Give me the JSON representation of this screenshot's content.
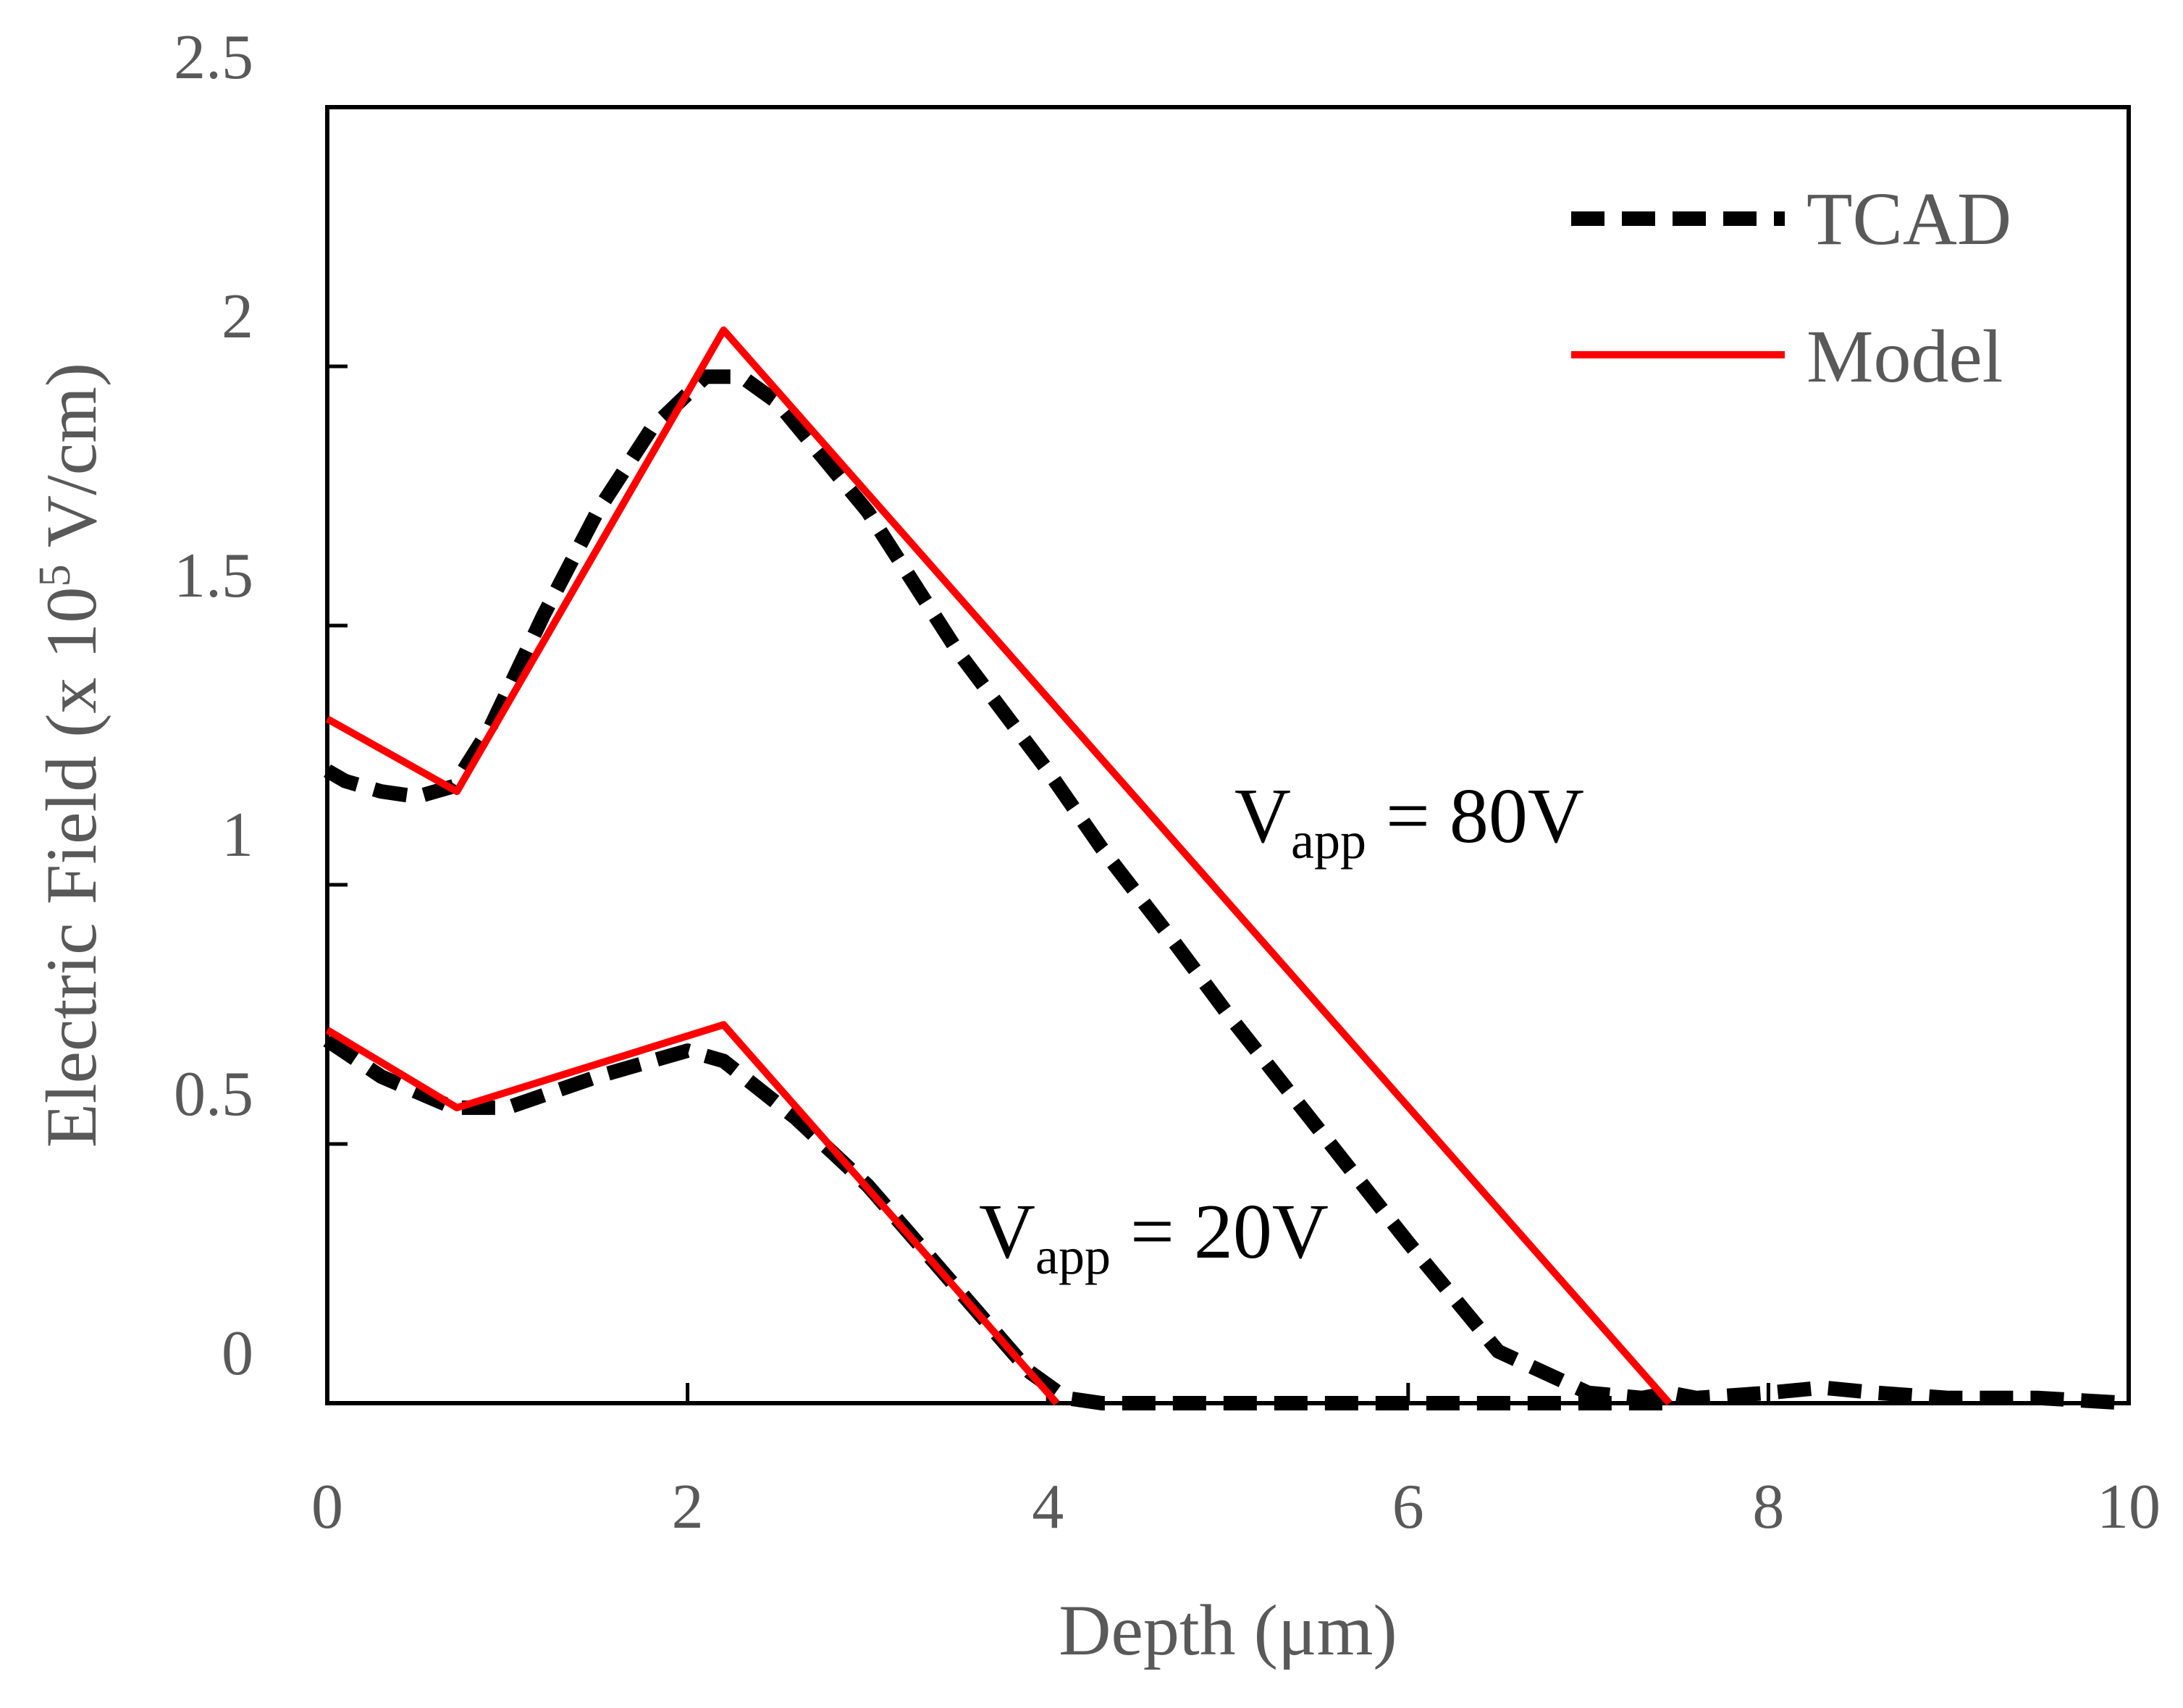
{
  "chart_data": {
    "type": "line",
    "title": "",
    "xlabel": "Depth (μm)",
    "ylabel": "Electric Field (x 10",
    "ylabel_superscript": "5",
    "ylabel_unit": " V/cm)",
    "xlim": [
      0,
      10
    ],
    "ylim": [
      0,
      2.5
    ],
    "x_ticks": [
      0,
      2,
      4,
      6,
      8,
      10
    ],
    "x_tick_labels": [
      "0",
      "2",
      "4",
      "6",
      "8",
      "10"
    ],
    "y_ticks": [
      0,
      0.5,
      1,
      1.5,
      2,
      2.5
    ],
    "y_tick_labels": [
      "0",
      "0.5",
      "1",
      "1.5",
      "2",
      "2.5"
    ],
    "grid": false,
    "legend_position": "top-right",
    "series": [
      {
        "name": "TCAD",
        "legend": true,
        "style": "dashed",
        "color": "#000000",
        "x": [
          0,
          0.1,
          0.3,
          0.5,
          0.7,
          0.9,
          1.2,
          1.5,
          1.8,
          2.1,
          2.3,
          2.5,
          3.0,
          3.5,
          4.0,
          4.3,
          4.7,
          5.0,
          5.5,
          6.0,
          6.5,
          7.0,
          7.3,
          7.45,
          7.6,
          8.0,
          8.3,
          8.6,
          9.0,
          9.5,
          10.0
        ],
        "y": [
          1.22,
          1.2,
          1.18,
          1.17,
          1.19,
          1.3,
          1.52,
          1.72,
          1.88,
          1.98,
          1.98,
          1.93,
          1.72,
          1.45,
          1.22,
          1.07,
          0.89,
          0.75,
          0.53,
          0.31,
          0.1,
          0.02,
          0.01,
          0.02,
          0.01,
          0.02,
          0.03,
          0.02,
          0.01,
          0.01,
          0.0
        ]
      },
      {
        "name": "Model",
        "legend": true,
        "style": "solid",
        "color": "#ff0000",
        "x": [
          0,
          0.72,
          2.2,
          7.45
        ],
        "y": [
          1.32,
          1.18,
          2.07,
          0.0
        ]
      },
      {
        "name": "TCAD (V_app = 20V)",
        "legend": false,
        "style": "dashed",
        "color": "#000000",
        "x": [
          0,
          0.3,
          0.7,
          1.0,
          1.5,
          2.0,
          2.2,
          2.6,
          3.0,
          3.5,
          3.9,
          4.1,
          4.3,
          5.0,
          6.0,
          7.0,
          7.5
        ],
        "y": [
          0.7,
          0.63,
          0.57,
          0.57,
          0.63,
          0.68,
          0.66,
          0.55,
          0.42,
          0.22,
          0.06,
          0.01,
          0.0,
          0.0,
          0.0,
          0.0,
          0.0
        ]
      },
      {
        "name": "Model (V_app = 20V)",
        "legend": false,
        "style": "solid",
        "color": "#ff0000",
        "x": [
          0,
          0.72,
          2.2,
          4.05
        ],
        "y": [
          0.72,
          0.57,
          0.73,
          0.0
        ]
      }
    ],
    "annotations": [
      {
        "main": "V",
        "sub": "app",
        "rest": " = 80V",
        "x": 5.02,
        "y": 1.12
      },
      {
        "main": "V",
        "sub": "app",
        "rest": " = 20V",
        "x": 3.61,
        "y": 0.33
      }
    ]
  }
}
